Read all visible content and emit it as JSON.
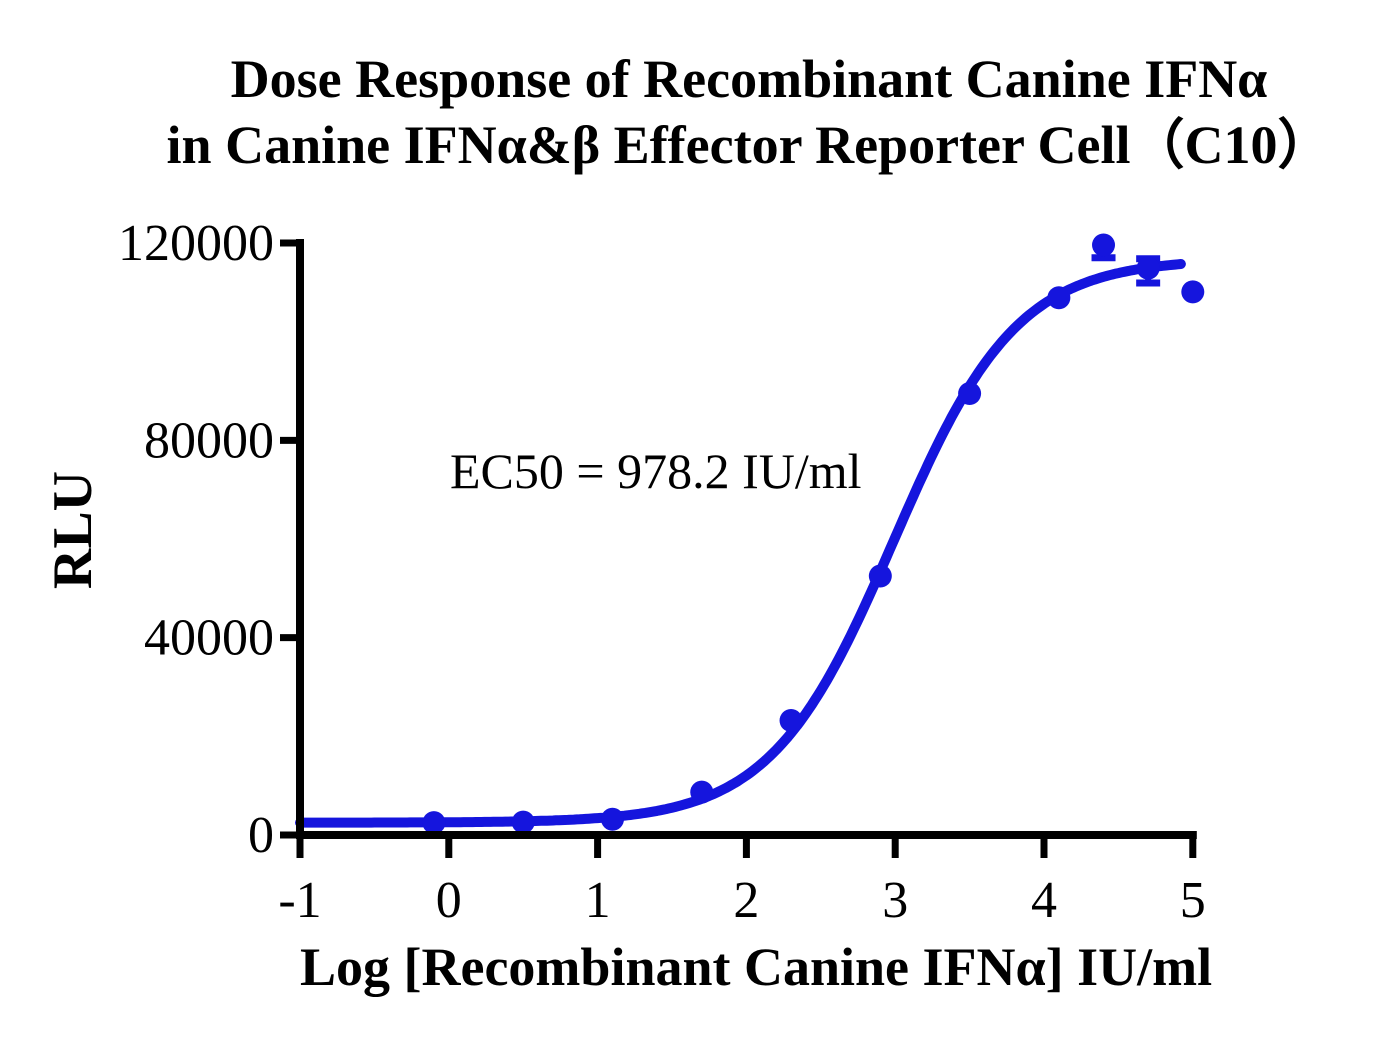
{
  "title": {
    "line1": "Dose Response of Recombinant Canine IFNα",
    "line2": "in Canine IFNα&β Effector Reporter Cell（C10）"
  },
  "annotation": {
    "ec50_text": "EC50 = 978.2 IU/ml"
  },
  "chart_data": {
    "type": "scatter",
    "title": "Dose Response of Recombinant Canine IFNα in Canine IFNα&β Effector Reporter Cell（C10）",
    "xlabel": "Log [Recombinant Canine IFNα] IU/ml",
    "ylabel": "RLU",
    "xlim": [
      -1,
      5
    ],
    "ylim": [
      0,
      120000
    ],
    "x_ticks": [
      -1,
      0,
      1,
      2,
      3,
      4,
      5
    ],
    "y_ticks": [
      0,
      40000,
      80000,
      120000
    ],
    "grid": false,
    "legend": false,
    "annotation": "EC50 = 978.2 IU/ml",
    "ec50_value_iu_ml": 978.2,
    "colors": {
      "curve": "#1515dd",
      "axis": "#000000"
    },
    "series": [
      {
        "name": "Recombinant Canine IFNα",
        "marker": "circle",
        "color": "#1515dd",
        "points": [
          {
            "x": -0.1,
            "y": 2500
          },
          {
            "x": 0.5,
            "y": 2600
          },
          {
            "x": 1.1,
            "y": 3200
          },
          {
            "x": 1.7,
            "y": 8700
          },
          {
            "x": 2.3,
            "y": 23200
          },
          {
            "x": 2.9,
            "y": 52500
          },
          {
            "x": 3.5,
            "y": 89500
          },
          {
            "x": 4.1,
            "y": 108900
          },
          {
            "x": 4.4,
            "y": 119600,
            "err_low": 117000
          },
          {
            "x": 4.7,
            "y": 114900,
            "err_low": 111900,
            "err_high": 116800
          },
          {
            "x": 5.0,
            "y": 110100
          }
        ],
        "fit": {
          "model": "4PL",
          "bottom": 2500,
          "top": 116800,
          "log_ec50": 2.99,
          "hill_slope": 1.05,
          "curve_x_range": [
            -1,
            4.93
          ]
        }
      }
    ]
  }
}
